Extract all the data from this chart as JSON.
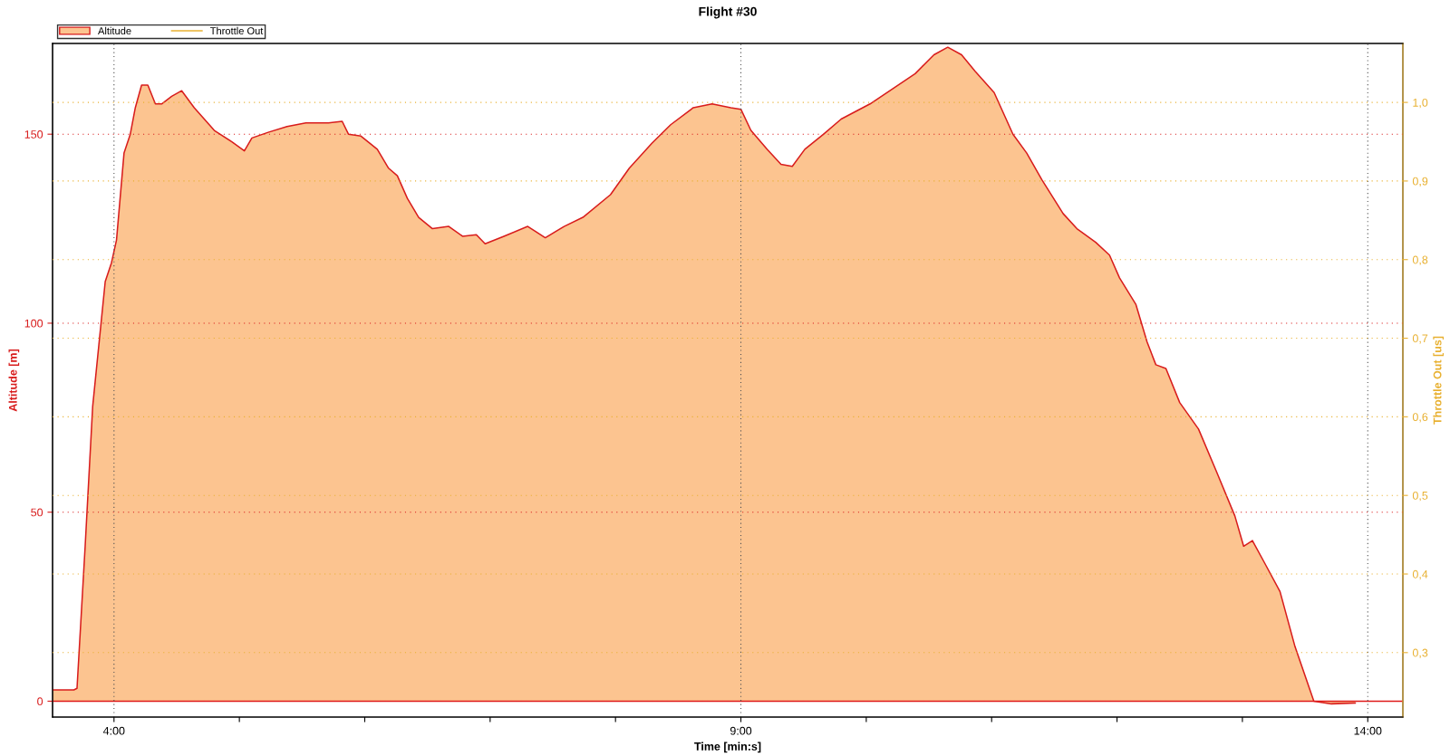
{
  "chart_data": {
    "type": "area",
    "title": "Flight #30",
    "xlabel": "Time [min:s]",
    "ylabel": "Altitude [m]",
    "y2label": "Throttle Out [us]",
    "x": [
      3.51,
      3.68,
      3.705,
      3.77,
      3.83,
      3.93,
      3.98,
      4.02,
      4.08,
      4.13,
      4.17,
      4.22,
      4.27,
      4.33,
      4.38,
      4.46,
      4.54,
      4.64,
      4.8,
      4.94,
      5.04,
      5.1,
      5.23,
      5.38,
      5.53,
      5.71,
      5.82,
      5.87,
      5.97,
      6.1,
      6.19,
      6.26,
      6.34,
      6.43,
      6.54,
      6.67,
      6.78,
      6.89,
      6.96,
      7.11,
      7.3,
      7.44,
      7.59,
      7.74,
      7.96,
      8.11,
      8.29,
      8.44,
      8.62,
      8.77,
      8.92,
      9.0,
      9.08,
      9.21,
      9.32,
      9.41,
      9.51,
      9.66,
      9.8,
      10.03,
      10.21,
      10.39,
      10.54,
      10.65,
      10.76,
      10.87,
      11.02,
      11.17,
      11.28,
      11.4,
      11.57,
      11.68,
      11.83,
      11.94,
      12.02,
      12.15,
      12.24,
      12.31,
      12.39,
      12.5,
      12.65,
      12.79,
      12.94,
      13.01,
      13.08,
      13.18,
      13.3,
      13.42,
      13.57,
      13.71,
      13.9
    ],
    "series": [
      {
        "name": "Altitude",
        "color": "#fcc490",
        "values": [
          3,
          3,
          3.4,
          41,
          78,
          111,
          116,
          122,
          145,
          150,
          157,
          163,
          163,
          158,
          158,
          160,
          161.5,
          157,
          151,
          148,
          145.6,
          149,
          150.5,
          152,
          153,
          153,
          153.4,
          150,
          149.5,
          146,
          141,
          139,
          133,
          128,
          125,
          125.6,
          123,
          123.4,
          121,
          123,
          125.6,
          122.6,
          125.6,
          128,
          134,
          141,
          147.6,
          152.5,
          157,
          158,
          157,
          156.6,
          151,
          146,
          142,
          141.5,
          146,
          150,
          154,
          158,
          162,
          166,
          171,
          173,
          171,
          166.6,
          161,
          150,
          145,
          138,
          129,
          125,
          121.4,
          118,
          112,
          105,
          95,
          89,
          88,
          79,
          72,
          61,
          49,
          41,
          42.5,
          36.4,
          29,
          14.4,
          0,
          -0.7,
          -0.5
        ]
      },
      {
        "name": "Throttle Out",
        "color": "#e8b030",
        "type": "line",
        "axis": "y2",
        "values": [
          null,
          null,
          null,
          null,
          null,
          null,
          null,
          null,
          null,
          null,
          null,
          null,
          null,
          null,
          null,
          null,
          null,
          null,
          null,
          null,
          null,
          null,
          null,
          null,
          null,
          null,
          null,
          null,
          null,
          null,
          null,
          null,
          null,
          null,
          null,
          null,
          null,
          null,
          null,
          null,
          null,
          null,
          null,
          null,
          null,
          null,
          null,
          null,
          null,
          null,
          null,
          null,
          null,
          null,
          null,
          null,
          null,
          null,
          null,
          null,
          null,
          null,
          null,
          null,
          null,
          null,
          null,
          null,
          null,
          null,
          null,
          null,
          null,
          null,
          null,
          null,
          null,
          null,
          null,
          null,
          null,
          null,
          null,
          null,
          null,
          null,
          null,
          null,
          null,
          null,
          null
        ]
      }
    ],
    "xlim": [
      3.51,
      14.28
    ],
    "ylim": [
      -4.2,
      174
    ],
    "xticks": [
      {
        "value": 4,
        "label": "4:00"
      },
      {
        "value": 5,
        "label": null
      },
      {
        "value": 6,
        "label": null
      },
      {
        "value": 7,
        "label": null
      },
      {
        "value": 8,
        "label": null
      },
      {
        "value": 9,
        "label": "9:00"
      },
      {
        "value": 10,
        "label": null
      },
      {
        "value": 11,
        "label": null
      },
      {
        "value": 12,
        "label": null
      },
      {
        "value": 13,
        "label": null
      },
      {
        "value": 14,
        "label": "14:00"
      }
    ],
    "yticks": [
      0,
      50,
      100,
      150
    ],
    "y2lim": [
      0.218,
      1.075
    ],
    "y2ticks": [
      {
        "value": 0.3,
        "label": "0,3"
      },
      {
        "value": 0.4,
        "label": "0,4"
      },
      {
        "value": 0.5,
        "label": "0,5"
      },
      {
        "value": 0.6,
        "label": "0,6"
      },
      {
        "value": 0.7,
        "label": "0,7"
      },
      {
        "value": 0.8,
        "label": "0,8"
      },
      {
        "value": 0.9,
        "label": "0,9"
      },
      {
        "value": 1.0,
        "label": "1,0"
      }
    ],
    "ref_lines": [
      {
        "axis": "y",
        "value": 0,
        "label": null,
        "color": "#e01818"
      }
    ],
    "grid": true,
    "legend": "top left",
    "marker": "none",
    "line_style": "solid"
  }
}
